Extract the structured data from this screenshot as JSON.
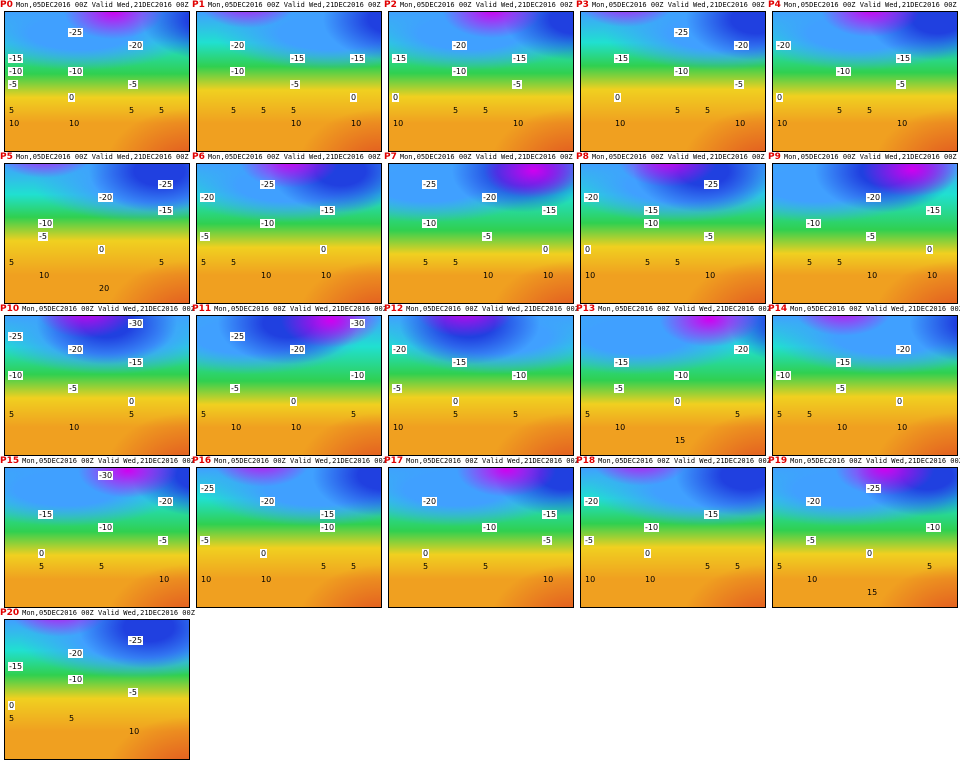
{
  "init_time": "Mon,05DEC2016 00Z",
  "valid_label": "Valid",
  "valid_time": "Wed,21DEC2016 00Z",
  "colors": {
    "purple": "#d000f0",
    "blue": "#2040e0",
    "lightblue": "#40a0ff",
    "cyan": "#20e0d0",
    "green": "#30d050",
    "yellow": "#f0d020",
    "orange": "#f0a020",
    "red": "#e05020",
    "panel_id": "#e00000"
  },
  "panels": [
    {
      "id": "P0",
      "labels": [
        "-15",
        "-10",
        "-5",
        "-10",
        "-25",
        "-20",
        "-5",
        "0",
        "5",
        "10",
        "10",
        "5",
        "5"
      ]
    },
    {
      "id": "P1",
      "labels": [
        "-20",
        "-15",
        "-15",
        "-10",
        "-5",
        "0",
        "5",
        "10",
        "10",
        "5",
        "5"
      ]
    },
    {
      "id": "P2",
      "labels": [
        "-20",
        "-15",
        "-15",
        "-10",
        "-5",
        "0",
        "5",
        "10",
        "10",
        "5"
      ]
    },
    {
      "id": "P3",
      "labels": [
        "-25",
        "-20",
        "-15",
        "-10",
        "-5",
        "0",
        "5",
        "10",
        "10",
        "5"
      ]
    },
    {
      "id": "P4",
      "labels": [
        "-15",
        "-20",
        "-10",
        "-5",
        "0",
        "5",
        "10",
        "10",
        "5"
      ]
    },
    {
      "id": "P5",
      "labels": [
        "-25",
        "-10",
        "-20",
        "-15",
        "-5",
        "0",
        "5",
        "10",
        "20",
        "5"
      ]
    },
    {
      "id": "P6",
      "labels": [
        "-5",
        "-25",
        "-15",
        "-20",
        "-10",
        "0",
        "5",
        "10",
        "10",
        "5"
      ]
    },
    {
      "id": "P7",
      "labels": [
        "-25",
        "-20",
        "-15",
        "-10",
        "-5",
        "0",
        "5",
        "10",
        "10",
        "5"
      ]
    },
    {
      "id": "P8",
      "labels": [
        "-10",
        "-25",
        "-20",
        "-15",
        "-5",
        "0",
        "5",
        "10",
        "10",
        "5"
      ]
    },
    {
      "id": "P9",
      "labels": [
        "-20",
        "-15",
        "-10",
        "-5",
        "0",
        "5",
        "10",
        "10",
        "5"
      ]
    },
    {
      "id": "P10",
      "labels": [
        "-30",
        "-25",
        "-20",
        "-15",
        "-10",
        "-5",
        "0",
        "5",
        "10",
        "5"
      ]
    },
    {
      "id": "P11",
      "labels": [
        "-30",
        "-25",
        "-20",
        "-10",
        "-5",
        "0",
        "5",
        "10",
        "10",
        "5"
      ]
    },
    {
      "id": "P12",
      "labels": [
        "-20",
        "-15",
        "-10",
        "-5",
        "0",
        "5",
        "10",
        "5"
      ]
    },
    {
      "id": "P13",
      "labels": [
        "-15",
        "-10",
        "-20",
        "-5",
        "0",
        "5",
        "10",
        "15",
        "5"
      ]
    },
    {
      "id": "P14",
      "labels": [
        "-15",
        "-20",
        "-10",
        "-5",
        "0",
        "5",
        "10",
        "10",
        "5"
      ]
    },
    {
      "id": "P15",
      "labels": [
        "-30",
        "-20",
        "-15",
        "-10",
        "-5",
        "0",
        "5",
        "10",
        "5"
      ]
    },
    {
      "id": "P16",
      "labels": [
        "-15",
        "-25",
        "-20",
        "-10",
        "-5",
        "0",
        "5",
        "10",
        "10",
        "5"
      ]
    },
    {
      "id": "P17",
      "labels": [
        "-15",
        "-20",
        "-10",
        "-5",
        "0",
        "5",
        "10",
        "5"
      ]
    },
    {
      "id": "P18",
      "labels": [
        "-20",
        "-10",
        "-15",
        "-5",
        "0",
        "5",
        "10",
        "10",
        "5"
      ]
    },
    {
      "id": "P19",
      "labels": [
        "-20",
        "-25",
        "-10",
        "-5",
        "0",
        "5",
        "10",
        "15",
        "5"
      ]
    },
    {
      "id": "P20",
      "labels": [
        "-20",
        "-25",
        "-15",
        "-10",
        "-5",
        "0",
        "5",
        "10",
        "5"
      ]
    }
  ]
}
